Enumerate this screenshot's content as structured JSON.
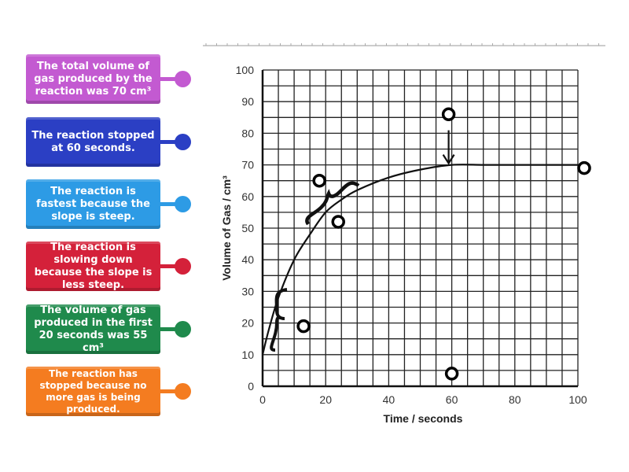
{
  "labels": [
    {
      "text": "The total volume of gas produced by the reaction was 70 cm³",
      "color": "#c35ad1"
    },
    {
      "text": "The reaction stopped at 60 seconds.",
      "color": "#2b3fc4"
    },
    {
      "text": "The reaction is fastest because the slope is steep.",
      "color": "#2d9be5"
    },
    {
      "text": "The reaction is slowing down because the slope is less steep.",
      "color": "#d4213a"
    },
    {
      "text": "The volume of gas produced in the first 20 seconds was 55 cm³",
      "color": "#1f8a4c"
    },
    {
      "text": "The reaction has stopped because no more gas is being produced.",
      "color": "#f47c20"
    }
  ],
  "chart_data": {
    "type": "line",
    "xlabel": "Time / seconds",
    "ylabel": "Volume of Gas / cm³",
    "xlim": [
      0,
      100
    ],
    "ylim": [
      0,
      100
    ],
    "xticks": [
      "0",
      "20",
      "40",
      "60",
      "80",
      "100"
    ],
    "yticks": [
      "0",
      "10",
      "20",
      "30",
      "40",
      "50",
      "60",
      "70",
      "80",
      "90",
      "100"
    ],
    "grid": true,
    "grid_step": 5,
    "series": [
      {
        "x": [
          0,
          2,
          5,
          10,
          15,
          20,
          25,
          30,
          40,
          50,
          60,
          70,
          80,
          90,
          100
        ],
        "y": [
          10,
          18,
          28,
          40,
          48,
          55,
          59,
          62,
          66,
          68.5,
          70,
          70,
          70,
          70,
          70
        ]
      }
    ],
    "annotations": [
      {
        "type": "arrow",
        "at": [
          59,
          70
        ]
      },
      {
        "type": "brace",
        "span_x": [
          1,
          6
        ],
        "span_y": [
          12,
          30
        ]
      },
      {
        "type": "brace",
        "span_x": [
          14,
          30
        ],
        "span_y": [
          50,
          64
        ]
      }
    ],
    "drop_targets": [
      [
        18,
        65
      ],
      [
        24,
        52
      ],
      [
        59,
        86
      ],
      [
        102,
        69
      ],
      [
        13,
        19
      ],
      [
        60,
        4
      ]
    ]
  }
}
